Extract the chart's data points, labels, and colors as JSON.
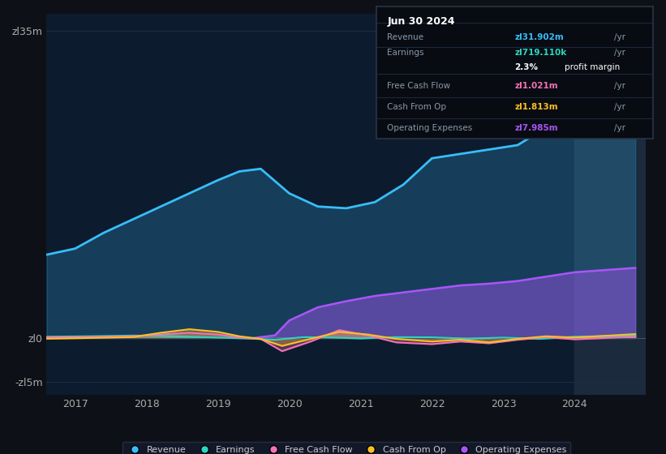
{
  "bg_color": "#0d1117",
  "plot_bg_color": "#0d1b2e",
  "title": "Jun 30 2024",
  "currency_symbol": "zl",
  "tooltip_rows": [
    {
      "label": "Revenue",
      "value": "zl31.902m",
      "suffix": "/yr",
      "color": "#38bdf8",
      "extra_val": null,
      "extra_label": null
    },
    {
      "label": "Earnings",
      "value": "zl719.110k",
      "suffix": "/yr",
      "color": "#2dd4bf",
      "extra_val": "2.3%",
      "extra_label": "profit margin"
    },
    {
      "label": "Free Cash Flow",
      "value": "zl1.021m",
      "suffix": "/yr",
      "color": "#f472b6",
      "extra_val": null,
      "extra_label": null
    },
    {
      "label": "Cash From Op",
      "value": "zl1.813m",
      "suffix": "/yr",
      "color": "#fbbf24",
      "extra_val": null,
      "extra_label": null
    },
    {
      "label": "Operating Expenses",
      "value": "zl7.985m",
      "suffix": "/yr",
      "color": "#a855f7",
      "extra_val": null,
      "extra_label": null
    }
  ],
  "ytick_values": [
    -5000000,
    0,
    35000000
  ],
  "ytick_labels": [
    "-zl5m",
    "zl0",
    "zl35m"
  ],
  "xtick_values": [
    2017,
    2018,
    2019,
    2020,
    2021,
    2022,
    2023,
    2024
  ],
  "xtick_labels": [
    "2017",
    "2018",
    "2019",
    "2020",
    "2021",
    "2022",
    "2023",
    "2024"
  ],
  "ylim": [
    -6500000,
    37000000
  ],
  "xlim": [
    2016.6,
    2025.0
  ],
  "highlight_x_start": 2024.0,
  "legend": [
    {
      "label": "Revenue",
      "color": "#38bdf8"
    },
    {
      "label": "Earnings",
      "color": "#2dd4bf"
    },
    {
      "label": "Free Cash Flow",
      "color": "#f472b6"
    },
    {
      "label": "Cash From Op",
      "color": "#fbbf24"
    },
    {
      "label": "Operating Expenses",
      "color": "#a855f7"
    }
  ],
  "colors": {
    "revenue": "#38bdf8",
    "earnings": "#2dd4bf",
    "fcf": "#f472b6",
    "cashfromop": "#fbbf24",
    "opex": "#a855f7"
  },
  "rev_x": [
    2016.6,
    2017.0,
    2017.4,
    2017.8,
    2018.2,
    2018.6,
    2019.0,
    2019.3,
    2019.6,
    2020.0,
    2020.4,
    2020.8,
    2021.2,
    2021.6,
    2022.0,
    2022.4,
    2022.8,
    2023.2,
    2023.6,
    2024.0,
    2024.4,
    2024.85
  ],
  "rev_y": [
    9500000,
    10200000,
    12000000,
    13500000,
    15000000,
    16500000,
    18000000,
    19000000,
    19300000,
    16500000,
    15000000,
    14800000,
    15500000,
    17500000,
    20500000,
    21000000,
    21500000,
    22000000,
    24000000,
    26000000,
    29500000,
    32000000
  ],
  "earn_x": [
    2016.6,
    2017.2,
    2017.8,
    2018.2,
    2018.6,
    2019.0,
    2019.4,
    2019.8,
    2020.2,
    2020.6,
    2021.0,
    2021.5,
    2022.0,
    2022.5,
    2023.0,
    2023.5,
    2024.0,
    2024.85
  ],
  "earn_y": [
    150000,
    200000,
    280000,
    250000,
    150000,
    50000,
    -50000,
    -200000,
    100000,
    50000,
    -50000,
    100000,
    80000,
    -80000,
    50000,
    -100000,
    150000,
    280000
  ],
  "fcf_x": [
    2016.6,
    2017.2,
    2017.8,
    2018.2,
    2018.6,
    2019.0,
    2019.3,
    2019.6,
    2019.9,
    2020.3,
    2020.7,
    2021.1,
    2021.5,
    2022.0,
    2022.4,
    2022.8,
    2023.2,
    2023.6,
    2024.0,
    2024.85
  ],
  "fcf_y": [
    80000,
    120000,
    200000,
    400000,
    600000,
    400000,
    50000,
    -100000,
    -1500000,
    -400000,
    900000,
    300000,
    -500000,
    -700000,
    -400000,
    -600000,
    -200000,
    100000,
    -150000,
    150000
  ],
  "cop_x": [
    2016.6,
    2017.2,
    2017.8,
    2018.2,
    2018.6,
    2019.0,
    2019.3,
    2019.6,
    2019.9,
    2020.3,
    2020.7,
    2021.1,
    2021.5,
    2022.0,
    2022.4,
    2022.8,
    2023.2,
    2023.6,
    2024.0,
    2024.85
  ],
  "cop_y": [
    -80000,
    0,
    100000,
    600000,
    1000000,
    700000,
    200000,
    -100000,
    -900000,
    -100000,
    700000,
    400000,
    -100000,
    -400000,
    -200000,
    -500000,
    -100000,
    200000,
    50000,
    450000
  ],
  "opex_x": [
    2019.5,
    2019.8,
    2020.0,
    2020.4,
    2020.8,
    2021.2,
    2021.6,
    2022.0,
    2022.4,
    2022.8,
    2023.2,
    2023.6,
    2024.0,
    2024.85
  ],
  "opex_y": [
    0,
    300000,
    2000000,
    3500000,
    4200000,
    4800000,
    5200000,
    5600000,
    6000000,
    6200000,
    6500000,
    7000000,
    7500000,
    8000000
  ]
}
